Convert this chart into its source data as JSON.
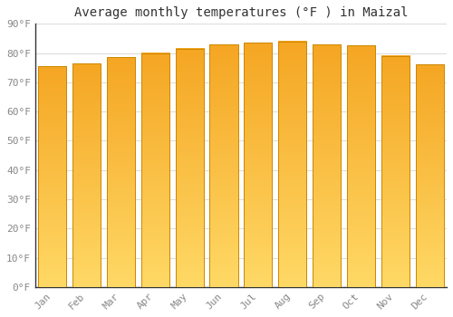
{
  "title": "Average monthly temperatures (°F ) in Maizal",
  "categories": [
    "Jan",
    "Feb",
    "Mar",
    "Apr",
    "May",
    "Jun",
    "Jul",
    "Aug",
    "Sep",
    "Oct",
    "Nov",
    "Dec"
  ],
  "values": [
    75.5,
    76.5,
    78.5,
    80.0,
    81.5,
    83.0,
    83.5,
    84.0,
    83.0,
    82.5,
    79.0,
    76.0
  ],
  "bar_color_top": "#F5A623",
  "bar_color_bottom": "#FFD966",
  "bar_edge_color": "#CC8800",
  "background_color": "#ffffff",
  "plot_bg_color": "#ffffff",
  "ylim": [
    0,
    90
  ],
  "yticks": [
    0,
    10,
    20,
    30,
    40,
    50,
    60,
    70,
    80,
    90
  ],
  "ytick_labels": [
    "0°F",
    "10°F",
    "20°F",
    "30°F",
    "40°F",
    "50°F",
    "60°F",
    "70°F",
    "80°F",
    "90°F"
  ],
  "title_fontsize": 10,
  "tick_fontsize": 8,
  "tick_font_color": "#888888",
  "grid_color": "#dddddd",
  "font_family": "monospace",
  "bar_width": 0.82
}
